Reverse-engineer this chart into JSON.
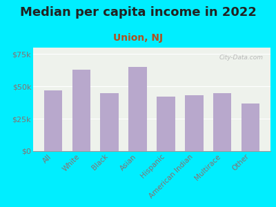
{
  "title": "Median per capita income in 2022",
  "subtitle": "Union, NJ",
  "categories": [
    "All",
    "White",
    "Black",
    "Asian",
    "Hispanic",
    "American Indian",
    "Multirace",
    "Other"
  ],
  "values": [
    47000,
    63000,
    45000,
    65000,
    42000,
    43000,
    45000,
    37000
  ],
  "bar_color": "#b8a8cc",
  "background_outer": "#00eeff",
  "background_inner": "#eef2ec",
  "title_color": "#222222",
  "subtitle_color": "#b05020",
  "tick_color": "#887070",
  "ylim": [
    0,
    80000
  ],
  "yticks": [
    0,
    25000,
    50000,
    75000
  ],
  "ytick_labels": [
    "$0",
    "$25k",
    "$50k",
    "$75k"
  ],
  "watermark": "City-Data.com",
  "title_fontsize": 13,
  "subtitle_fontsize": 10,
  "tick_fontsize": 8,
  "xlabel_fontsize": 7.5
}
